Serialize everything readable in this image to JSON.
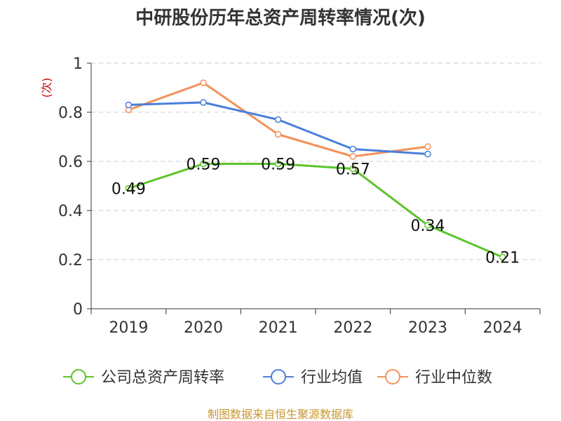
{
  "chart_data": {
    "type": "line",
    "title": "中研股份历年总资产周转率情况(次)",
    "ylabel": "(次)",
    "xlabel": "",
    "categories": [
      "2019",
      "2020",
      "2021",
      "2022",
      "2023",
      "2024"
    ],
    "ylim": [
      0,
      1
    ],
    "yticks": [
      "0",
      "0.2",
      "0.4",
      "0.6",
      "0.8",
      "1"
    ],
    "grid": true,
    "legend_position": "bottom",
    "series": [
      {
        "name": "公司总资产周转率",
        "color": "#5cc42b",
        "values": [
          0.49,
          0.59,
          0.59,
          0.57,
          0.34,
          0.21
        ],
        "data_labels": [
          "0.49",
          "0.59",
          "0.59",
          "0.57",
          "0.34",
          "0.21"
        ]
      },
      {
        "name": "行业均值",
        "color": "#4a7fdb",
        "values": [
          0.83,
          0.84,
          0.77,
          0.65,
          0.63,
          null
        ]
      },
      {
        "name": "行业中位数",
        "color": "#f5915a",
        "values": [
          0.81,
          0.92,
          0.71,
          0.62,
          0.66,
          null
        ]
      }
    ]
  },
  "footer": {
    "source": "制图数据来自恒生聚源数据库"
  }
}
